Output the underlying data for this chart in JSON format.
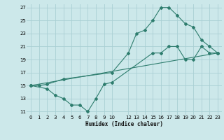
{
  "xlabel": "Humidex (Indice chaleur)",
  "xlim": [
    -0.5,
    23.5
  ],
  "ylim": [
    10.5,
    27.5
  ],
  "xticks": [
    0,
    1,
    2,
    3,
    4,
    5,
    6,
    7,
    8,
    9,
    10,
    12,
    13,
    14,
    15,
    16,
    17,
    18,
    19,
    20,
    21,
    22,
    23
  ],
  "yticks": [
    11,
    13,
    15,
    17,
    19,
    21,
    23,
    25,
    27
  ],
  "bg_color": "#cce8ea",
  "grid_color": "#aacfd4",
  "line_color": "#2e7d6e",
  "line1_x": [
    0,
    1,
    2,
    4,
    10,
    12,
    13,
    14,
    15,
    16,
    17,
    18,
    19,
    20,
    21,
    22,
    23
  ],
  "line1_y": [
    15,
    15,
    15.2,
    16,
    17,
    20,
    23,
    23.5,
    25,
    27,
    27,
    25.8,
    24.5,
    24,
    22,
    21,
    20
  ],
  "line2_x": [
    0,
    2,
    3,
    4,
    5,
    6,
    7,
    8,
    9,
    10,
    15,
    16,
    17,
    18,
    19,
    20,
    21,
    22,
    23
  ],
  "line2_y": [
    15,
    14.5,
    13.5,
    13,
    12,
    12,
    11,
    13,
    15.2,
    15.5,
    20,
    20,
    21,
    21,
    19,
    19,
    21,
    20,
    20
  ],
  "line3_x": [
    0,
    23
  ],
  "line3_y": [
    15,
    20
  ]
}
